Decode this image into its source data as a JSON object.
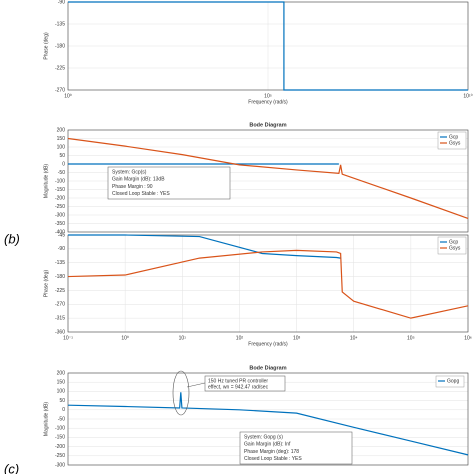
{
  "chart_data": [
    {
      "type": "line",
      "xscale": "log",
      "ylabel": "Phase (deg)",
      "xlabel": "Frequency (rad/s)",
      "xlim": [
        1,
        10000000000
      ],
      "xticks": [
        {
          "value": 1,
          "label": "10⁰"
        },
        {
          "value": 100000,
          "label": "10⁵"
        },
        {
          "value": 10000000000,
          "label": "10¹⁰"
        }
      ],
      "ylim": [
        -270,
        -90
      ],
      "yticks": [
        -90,
        -135,
        -180,
        -225,
        -270
      ],
      "grid": true,
      "x": [
        1,
        250000,
        250000,
        10000000000
      ],
      "series": [
        {
          "color": "#0072bd",
          "values": [
            -90,
            -90,
            -270,
            -270
          ]
        }
      ]
    },
    {
      "type": "line",
      "xscale": "log",
      "title": "Bode Diagram",
      "ylabel": "Magnitude (dB)",
      "xlim": [
        0.1,
        1000000
      ],
      "ylim": [
        -400,
        200
      ],
      "yticks": [
        200,
        150,
        100,
        50,
        0,
        -50,
        -100,
        -150,
        -200,
        -250,
        -300,
        -350,
        -400
      ],
      "grid": true,
      "legend": "top-right",
      "annotation": [
        "System: Gcp(s)",
        "Gain Margin (dB): 13dB",
        "Phase Margin : 90",
        "Closed Loop Stable : YES"
      ],
      "x": [
        0.1,
        1,
        10,
        100,
        1000,
        5500,
        5900,
        6300,
        100000,
        1000000
      ],
      "series": [
        {
          "name": "Gcp",
          "color": "#0072bd",
          "values": [
            0,
            0,
            0,
            0,
            0,
            0,
            null,
            null,
            null,
            null
          ]
        },
        {
          "name": "Gsys",
          "color": "#d95319",
          "values": [
            150,
            105,
            55,
            -5,
            -35,
            -55,
            -5,
            -60,
            -200,
            -320
          ]
        }
      ]
    },
    {
      "type": "line",
      "xscale": "log",
      "ylabel": "Phase (deg)",
      "xlabel": "Frequency (rad/s)",
      "xlim": [
        0.1,
        1000000
      ],
      "xticks": [
        {
          "value": 0.1,
          "label": "10⁻¹"
        },
        {
          "value": 1,
          "label": "10⁰"
        },
        {
          "value": 10,
          "label": "10¹"
        },
        {
          "value": 100,
          "label": "10²"
        },
        {
          "value": 1000,
          "label": "10³"
        },
        {
          "value": 10000,
          "label": "10⁴"
        },
        {
          "value": 100000,
          "label": "10⁵"
        },
        {
          "value": 1000000,
          "label": "10⁶"
        }
      ],
      "ylim": [
        -360,
        -45
      ],
      "yticks": [
        -45,
        -90,
        -135,
        -180,
        -225,
        -270,
        -315,
        -360
      ],
      "grid": true,
      "legend": "top-right",
      "x": [
        0.1,
        1,
        20,
        250,
        1000,
        5000,
        5900,
        6300,
        10000,
        100000,
        1000000
      ],
      "series": [
        {
          "name": "Gcp",
          "color": "#0072bd",
          "values": [
            -45,
            -45,
            -50,
            -105,
            -112,
            -118,
            -120,
            null,
            null,
            null,
            null
          ]
        },
        {
          "name": "Gsys",
          "color": "#d95319",
          "values": [
            -180,
            -175,
            -120,
            -100,
            -95,
            -100,
            -105,
            -230,
            -260,
            -315,
            -275
          ]
        }
      ]
    },
    {
      "type": "line",
      "xscale": "log",
      "title": "Bode Diagram",
      "ylabel": "Magnitude (dB)",
      "xlim": [
        10,
        100000000
      ],
      "ylim": [
        -300,
        200
      ],
      "yticks": [
        200,
        150,
        100,
        50,
        0,
        -50,
        -100,
        -150,
        -200,
        -250,
        -300
      ],
      "grid": true,
      "legend": "top-right",
      "callout": [
        "150 Hz tuned PR controller",
        "effect, wn = 942.47 rad/sec"
      ],
      "annotation": [
        "System: Gopg (s)",
        "Gain Margin (dB): Inf",
        "Phase Margin (deg): 178",
        "Closed Loop Stable : YES"
      ],
      "x": [
        10,
        100,
        900,
        942,
        985,
        10000,
        100000,
        1000000,
        10000000,
        100000000
      ],
      "series": [
        {
          "name": "Gopg",
          "color": "#0072bd",
          "values": [
            25,
            18,
            10,
            95,
            10,
            0,
            -18,
            -95,
            -170,
            -245
          ]
        }
      ]
    }
  ],
  "panel_labels": [
    "(b)",
    "(c)"
  ]
}
